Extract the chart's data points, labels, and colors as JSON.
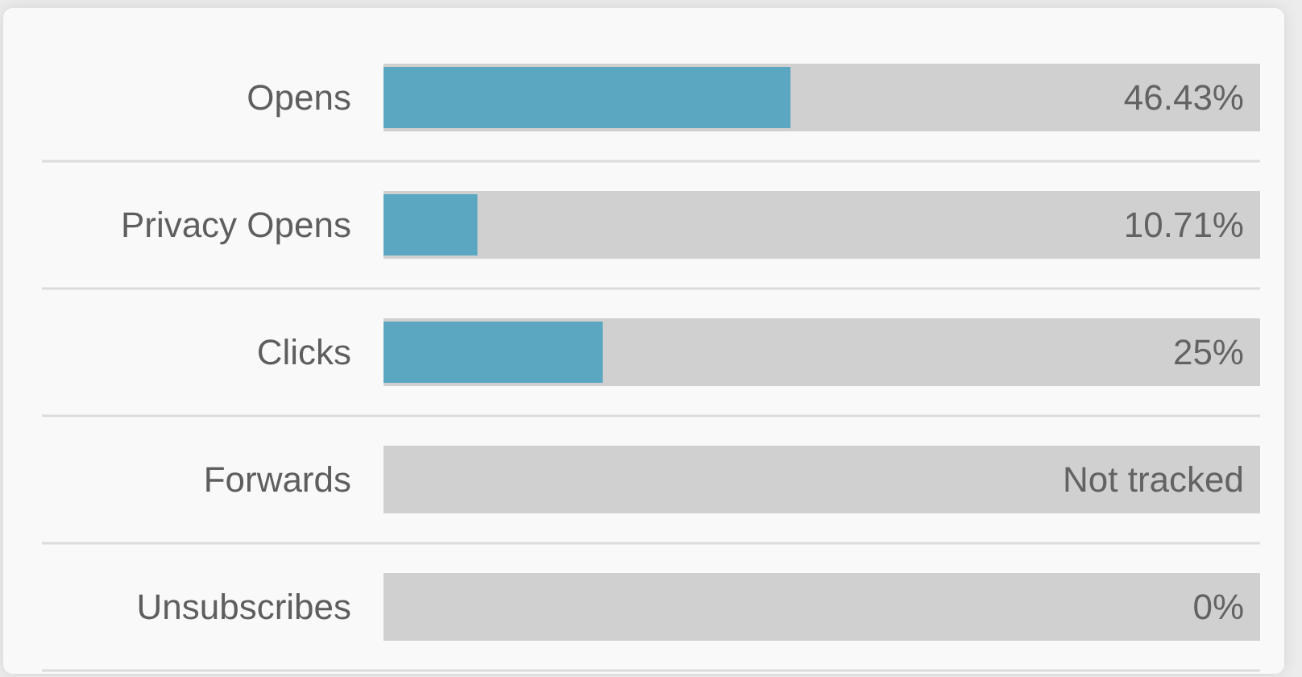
{
  "chart_data": {
    "type": "bar",
    "orientation": "horizontal",
    "categories": [
      "Opens",
      "Privacy Opens",
      "Clicks",
      "Forwards",
      "Unsubscribes"
    ],
    "series": [
      {
        "color": "#5ba6c0",
        "values": [
          46.43,
          10.71,
          25,
          null,
          0
        ],
        "value_labels": [
          "46.43%",
          "10.71%",
          "25%",
          "Not tracked",
          "0%"
        ]
      },
      {
        "color": "#d0d0d0",
        "values": [
          100,
          100,
          100,
          100,
          100
        ]
      }
    ],
    "xlim": [
      0,
      100
    ],
    "tick_labels": "y",
    "grid": "y"
  }
}
